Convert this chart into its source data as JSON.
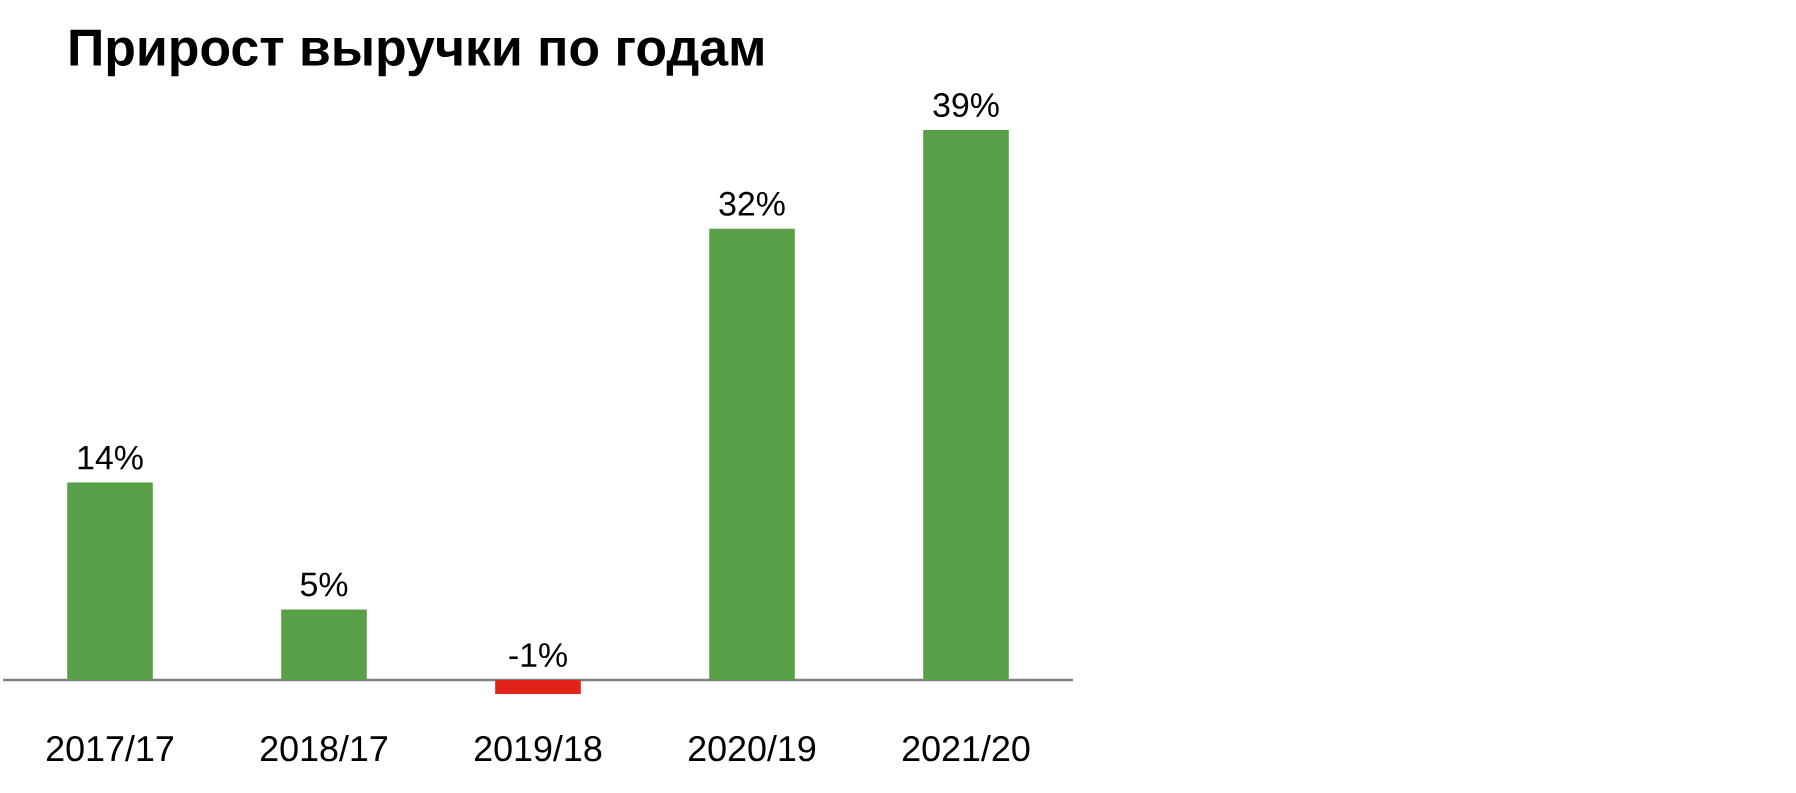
{
  "chart_data": {
    "type": "bar",
    "title": "Прирост выручки  по годам",
    "categories": [
      "2017/17",
      "2018/17",
      "2019/18",
      "2020/19",
      "2021/20"
    ],
    "values": [
      14,
      5,
      -1,
      32,
      39
    ],
    "colors": [
      "#57a047",
      "#57a047",
      "#e2231a",
      "#57a047",
      "#57a047"
    ],
    "value_labels": [
      "14%",
      "5%",
      "-1%",
      "32%",
      "39%"
    ]
  }
}
